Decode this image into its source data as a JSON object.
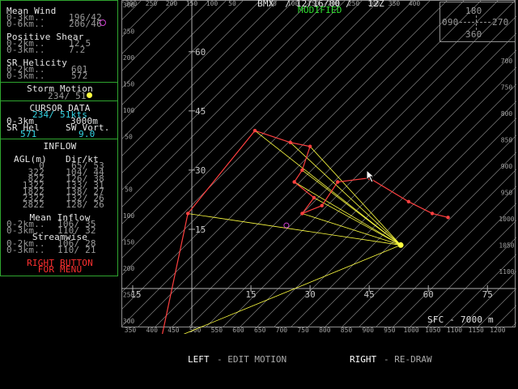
{
  "left_panel": {
    "mean_wind": {
      "title": "Mean Wind",
      "row1_label": "0-3km..",
      "row1_value": "196/42",
      "row2_label": "0-6km..",
      "row2_value": "206/46"
    },
    "positive_shear": {
      "title": "Positive Shear",
      "row1_label": "0-2km..",
      "row1_value": "12.5",
      "row2_label": "0-3km..",
      "row2_value": "7.2"
    },
    "sr_helicity": {
      "title": "SR Helicity",
      "row1_label": "0-2km..",
      "row1_value": "601",
      "row2_label": "0-3km..",
      "row2_value": "572"
    },
    "storm_motion": {
      "title": "Storm Motion",
      "value": "234/ 51"
    },
    "cursor_data": {
      "title": "CURSOR DATA",
      "motion": "234/ 51kts",
      "label_0_3": "0-3km",
      "height": "3000m",
      "sr_hel_label": "SR Hel",
      "sw_vort_label": "SW Vort.",
      "sr_hel_value": "571",
      "sw_vort_value": "9.0"
    },
    "inflow": {
      "title": "INFLOW",
      "col1": "AGL(m)",
      "col2": "Dir/kt",
      "rows": [
        {
          "agl": "0",
          "dir": "65/ 53"
        },
        {
          "agl": "322",
          "dir": "104/ 44"
        },
        {
          "agl": "822",
          "dir": "126/ 38"
        },
        {
          "agl": "1322",
          "dir": "133/ 31"
        },
        {
          "agl": "1822",
          "dir": "138/ 27"
        },
        {
          "agl": "2322",
          "dir": "132/ 26"
        },
        {
          "agl": "2822",
          "dir": "128/ 26"
        }
      ],
      "mean_title": "Mean Inflow",
      "mean1_label": "0-2km..",
      "mean1_value": "106/ 35",
      "mean2_label": "0-3km..",
      "mean2_value": "110/ 32",
      "stream_title": "Streamwise",
      "stream1_label": "0-2km..",
      "stream1_value": "106/ 28",
      "stream2_label": "0-3km..",
      "stream2_value": "110/ 21",
      "menu_line1": "RIGHT BUTTON",
      "menu_line2": "FOR MENU"
    }
  },
  "hodograph": {
    "header": "BMX  / 12/16/00 /   12Z",
    "modified": "MODIFIED",
    "compass": {
      "n": "180",
      "w": "090",
      "e": "270",
      "s": "360"
    },
    "top_scale": [
      "300",
      "250",
      "200",
      "150",
      "100",
      "50",
      "",
      "50",
      "100",
      "150",
      "200",
      "250",
      "300",
      "350",
      "400"
    ],
    "bottom_scale": [
      "350",
      "400",
      "450",
      "500",
      "550",
      "600",
      "650",
      "700",
      "750",
      "800",
      "850",
      "900",
      "950",
      "1000",
      "1050",
      "1100",
      "1150",
      "1200"
    ],
    "left_scale": [
      "300",
      "250",
      "200",
      "150",
      "100",
      "50",
      "",
      "50",
      "100",
      "150",
      "200",
      "250",
      "300"
    ],
    "right_scale": [
      "700",
      "750",
      "800",
      "850",
      "900",
      "950",
      "1000",
      "1050",
      "1100"
    ],
    "x_ticks": [
      "15",
      "15",
      "30",
      "45",
      "60",
      "75"
    ],
    "y_ticks": [
      "60",
      "45",
      "30",
      "15"
    ],
    "sfc_label": "SFC - 7000 m",
    "hodo_trace": [
      [
        -8,
        -14
      ],
      [
        -1,
        19
      ],
      [
        16,
        40
      ],
      [
        25,
        37
      ],
      [
        30,
        36
      ],
      [
        28,
        30
      ],
      [
        26,
        27
      ],
      [
        31,
        23
      ],
      [
        28,
        19
      ],
      [
        33,
        21
      ],
      [
        37,
        27
      ],
      [
        45,
        28
      ],
      [
        55,
        22
      ],
      [
        61,
        19
      ],
      [
        65,
        18
      ]
    ],
    "storm_motion_point": [
      53,
      11
    ],
    "mean_wind_point": [
      28,
      19
    ],
    "colors": {
      "trace": "#ff4040",
      "lines": "#ffff40",
      "grid": "#808080",
      "axis": "#b0b0b0",
      "panel": "#2fa52f"
    }
  },
  "footer": {
    "left_label": "LEFT",
    "left_action": "- EDIT MOTION",
    "right_label": "RIGHT",
    "right_action": "- RE-DRAW"
  }
}
